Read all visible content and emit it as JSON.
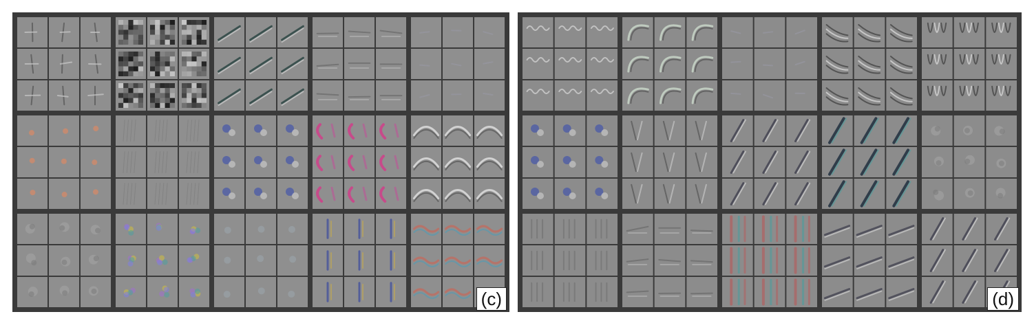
{
  "figure": {
    "description_free": true,
    "panels": [
      {
        "id": "c",
        "label": "(c)",
        "grid_rows": 3,
        "grid_cols": 5,
        "cell_rows": 3,
        "cell_cols": 3,
        "background": "#3a3a3a",
        "tile_base": "#8f8f8f",
        "block_styles": [
          [
            "vertical",
            "checker",
            "diag-up",
            "horizontal",
            "faint"
          ],
          [
            "dot-orange",
            "fine-vertical",
            "blob-blue",
            "curve-magenta",
            "arc"
          ],
          [
            "blob-faint",
            "color-noise",
            "faint-color",
            "vertical-blue",
            "wavy-color"
          ]
        ]
      },
      {
        "id": "d",
        "label": "(d)",
        "grid_rows": 3,
        "grid_cols": 5,
        "cell_rows": 3,
        "cell_cols": 3,
        "background": "#3a3a3a",
        "tile_base": "#8c8c8c",
        "block_styles": [
          [
            "squiggle",
            "arc-top",
            "faint",
            "curves",
            "u-shapes"
          ],
          [
            "blob-blue",
            "v-lines",
            "diag-steep",
            "diag-dark",
            "blob-faint"
          ],
          [
            "vertical-faint",
            "horizontal",
            "stripes-red",
            "diag-low",
            "diag-steep"
          ]
        ]
      }
    ]
  }
}
